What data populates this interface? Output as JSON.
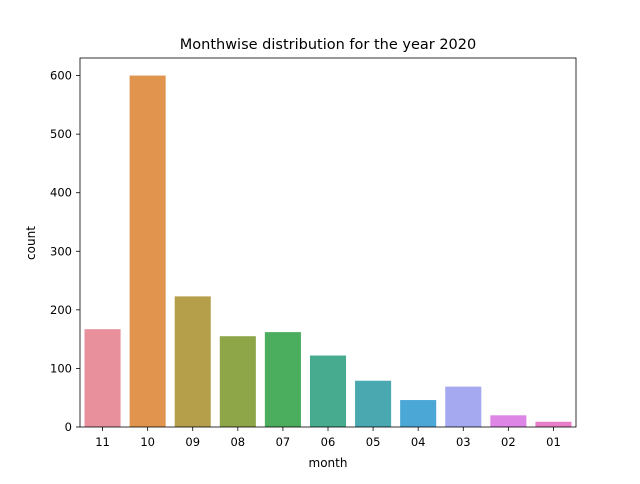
{
  "chart_data": {
    "type": "bar",
    "title": "Monthwise distribution for the year 2020",
    "xlabel": "month",
    "ylabel": "count",
    "categories": [
      "11",
      "10",
      "09",
      "08",
      "07",
      "06",
      "05",
      "04",
      "03",
      "02",
      "01"
    ],
    "values": [
      167,
      600,
      223,
      155,
      162,
      122,
      79,
      46,
      69,
      20,
      9
    ],
    "colors": [
      "#e8909c",
      "#e0944e",
      "#b59f4b",
      "#8fa648",
      "#4aae5e",
      "#47ab8f",
      "#4aa9b0",
      "#4ba7d6",
      "#a5aaf0",
      "#dd86e6",
      "#e87ec9"
    ],
    "ylim": [
      0,
      630
    ],
    "yticks": [
      0,
      100,
      200,
      300,
      400,
      500,
      600
    ],
    "grid": false,
    "legend": "none"
  }
}
